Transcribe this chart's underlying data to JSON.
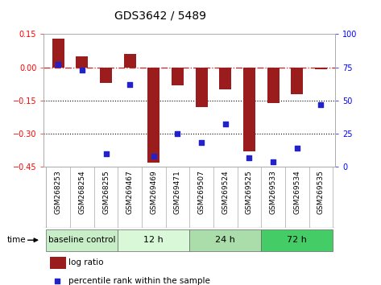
{
  "title": "GDS3642 / 5489",
  "samples": [
    "GSM268253",
    "GSM268254",
    "GSM268255",
    "GSM269467",
    "GSM269469",
    "GSM269471",
    "GSM269507",
    "GSM269524",
    "GSM269525",
    "GSM269533",
    "GSM269534",
    "GSM269535"
  ],
  "log_ratio": [
    0.13,
    0.05,
    -0.07,
    0.06,
    -0.43,
    -0.08,
    -0.18,
    -0.1,
    -0.38,
    -0.16,
    -0.12,
    -0.01
  ],
  "percentile_rank": [
    77,
    73,
    10,
    62,
    8,
    25,
    18,
    32,
    7,
    4,
    14,
    47
  ],
  "bar_color": "#9B1C1C",
  "dot_color": "#2222CC",
  "ylim_left": [
    -0.45,
    0.15
  ],
  "ylim_right": [
    0,
    100
  ],
  "yticks_left": [
    0.15,
    0.0,
    -0.15,
    -0.3,
    -0.45
  ],
  "yticks_right": [
    100,
    75,
    50,
    25,
    0
  ],
  "hline_0_color": "#CC2222",
  "hline_grid_color": "black",
  "bar_width": 0.5,
  "group_labels": [
    "baseline control",
    "12 h",
    "24 h",
    "72 h"
  ],
  "group_ranges": [
    [
      0,
      2
    ],
    [
      3,
      5
    ],
    [
      6,
      8
    ],
    [
      9,
      11
    ]
  ],
  "group_colors": [
    "#c8eec8",
    "#d8f8d8",
    "#aaddaa",
    "#44cc66"
  ],
  "time_label": "time",
  "legend_log_ratio": "log ratio",
  "legend_percentile": "percentile rank within the sample",
  "background_color": "#ffffff",
  "spine_color": "#aaaaaa",
  "tick_label_fontsize": 6.5,
  "title_fontsize": 10
}
